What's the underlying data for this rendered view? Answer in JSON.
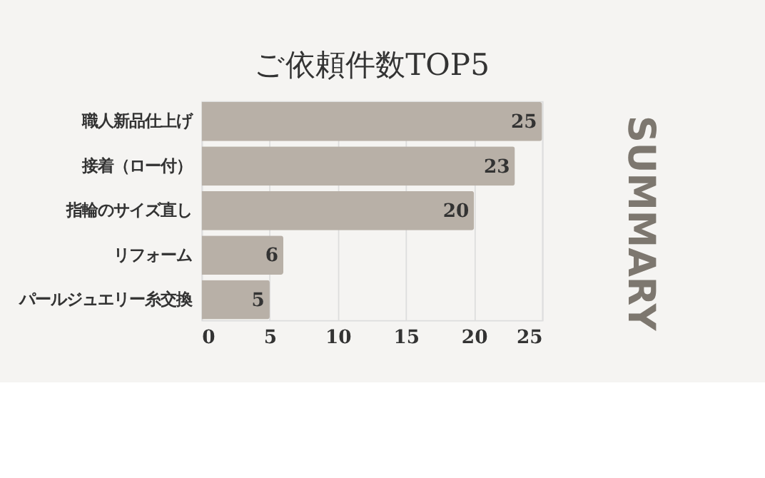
{
  "chart_data": {
    "type": "bar",
    "orientation": "horizontal",
    "title": "ご依頼件数TOP5",
    "categories": [
      "職人新品仕上げ",
      "接着（ロー付）",
      "指輪のサイズ直し",
      "リフォーム",
      "パールジュエリー糸交換"
    ],
    "values": [
      25,
      23,
      20,
      6,
      5
    ],
    "color": "#b8b0a7",
    "xlim": [
      0,
      25
    ],
    "xticks": [
      0,
      5,
      10,
      15,
      20,
      25
    ],
    "grid": "x",
    "data_labels": true,
    "annotations": [
      "SUMMARY"
    ]
  }
}
